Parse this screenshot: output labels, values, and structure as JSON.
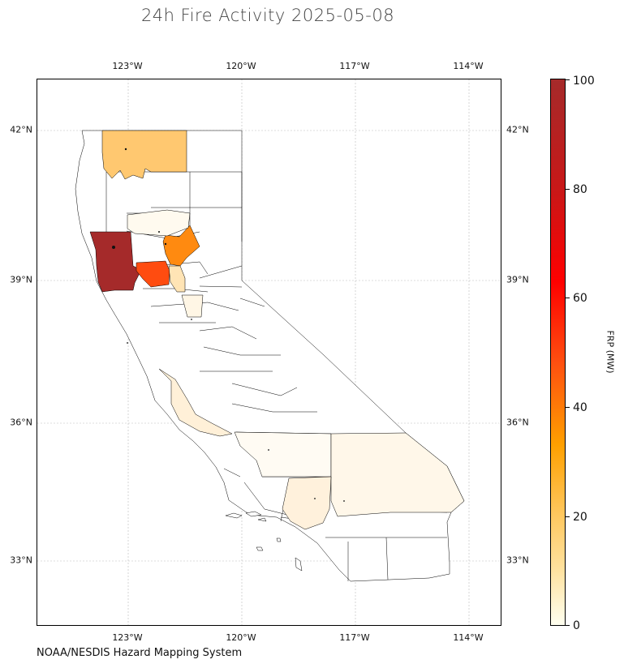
{
  "title": "24h Fire Activity 2025-05-08",
  "source": "NOAA/NESDIS Hazard Mapping System",
  "map": {
    "lon_ticks": [
      "123°W",
      "120°W",
      "117°W",
      "114°W"
    ],
    "lat_ticks": [
      "42°N",
      "39°N",
      "36°N",
      "33°N"
    ],
    "grid": true,
    "colors": {
      "fill_max": "#a52a2a",
      "fill_high": "#ff4c10",
      "fill_mid": "#ff8a10",
      "fill_low": "#ffc870",
      "fill_faint": "#fff3dc",
      "fill_min": "#fffaef",
      "outline": "#000000"
    }
  },
  "colorbar": {
    "label": "FRP (MW)",
    "ticks": [
      "0",
      "20",
      "40",
      "60",
      "80",
      "100"
    ],
    "min": 0,
    "max": 100,
    "colormap": [
      "#fffff0",
      "#ffc860",
      "#ffa000",
      "#ff5010",
      "#ff0000",
      "#a52a2a"
    ]
  }
}
